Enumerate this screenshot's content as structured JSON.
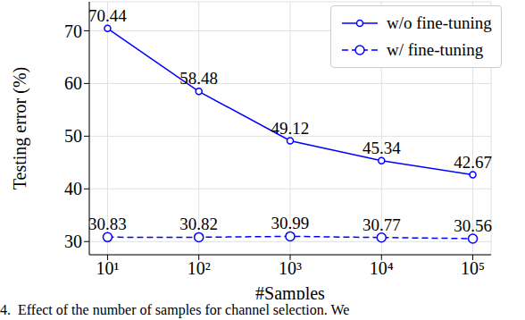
{
  "chart_data": {
    "type": "line",
    "x_label": "#Samples",
    "y_label": "Testing error (%)",
    "caption": "4.  Effect of the number of samples for channel selection. We",
    "x": [
      10,
      100,
      1000,
      10000,
      100000
    ],
    "series": [
      {
        "name": "w/o fine-tuning",
        "color": "#0000ff",
        "marker": "circle",
        "line_style": "solid",
        "values": [
          70.44,
          58.48,
          49.12,
          45.34,
          42.67
        ]
      },
      {
        "name": "w/ fine-tuning",
        "color": "#0000ff",
        "marker": "circle",
        "line_style": "dashed",
        "values": [
          30.83,
          30.82,
          30.99,
          30.77,
          30.56
        ]
      }
    ],
    "log": "x",
    "xlim": [
      6.31,
      158489
    ],
    "xticks": [
      {
        "value": 10,
        "label": "10¹"
      },
      {
        "value": 100,
        "label": "10²"
      },
      {
        "value": 1000,
        "label": "10³"
      },
      {
        "value": 10000,
        "label": "10⁴"
      },
      {
        "value": 100000,
        "label": "10⁵"
      }
    ],
    "ylim": [
      27.5,
      75.5
    ],
    "yticks": [
      30,
      40,
      50,
      60,
      70
    ],
    "grid": true,
    "legend": "upper right",
    "data_labels": true
  }
}
